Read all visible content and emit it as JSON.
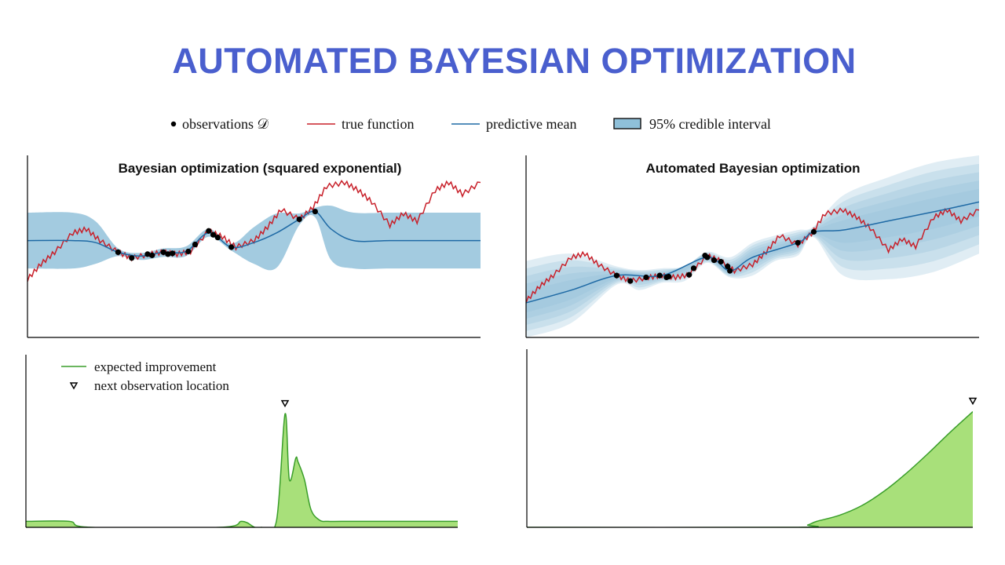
{
  "title": "AUTOMATED BAYESIAN OPTIMIZATION",
  "colors": {
    "title": "#4a5fce",
    "true_function": "#c8202a",
    "predictive_mean": "#1f6aa5",
    "credible_interval": "#8fc0d9",
    "expected_improvement_line": "#3a9e2a",
    "expected_improvement_fill": "#a8e07a",
    "observation": "#000000"
  },
  "legend_top": {
    "observations": "observations 𝒟",
    "true_function": "true function",
    "predictive_mean": "predictive mean",
    "credible_interval": "95% credible interval"
  },
  "legend_bottom": {
    "expected_improvement": "expected improvement",
    "next_observation": "next observation location"
  },
  "chart_data": [
    {
      "type": "line",
      "panel": "top-left",
      "title": "Bayesian optimization (squared exponential)",
      "xlim": [
        0,
        1
      ],
      "ylim": [
        -2.5,
        2.2
      ],
      "observations": {
        "x": [
          0.2,
          0.23,
          0.265,
          0.275,
          0.3,
          0.31,
          0.32,
          0.355,
          0.37,
          0.4,
          0.41,
          0.42,
          0.45,
          0.6,
          0.635
        ],
        "y": [
          -0.3,
          -0.45,
          -0.35,
          -0.38,
          -0.3,
          -0.35,
          -0.33,
          -0.28,
          -0.1,
          0.25,
          0.15,
          0.08,
          -0.17,
          0.55,
          0.75
        ]
      },
      "true_function": {
        "x": [
          0.0,
          0.03,
          0.06,
          0.1,
          0.13,
          0.16,
          0.2,
          0.23,
          0.27,
          0.3,
          0.33,
          0.36,
          0.4,
          0.43,
          0.46,
          0.5,
          0.53,
          0.56,
          0.6,
          0.63,
          0.66,
          0.7,
          0.73,
          0.76,
          0.8,
          0.83,
          0.86,
          0.9,
          0.93,
          0.96,
          1.0
        ],
        "y": [
          -1.0,
          -0.6,
          -0.3,
          0.2,
          0.3,
          0.0,
          -0.3,
          -0.45,
          -0.35,
          -0.3,
          -0.35,
          -0.28,
          0.25,
          0.1,
          -0.17,
          0.0,
          0.35,
          0.8,
          0.55,
          0.85,
          1.4,
          1.5,
          1.3,
          1.0,
          0.4,
          0.7,
          0.5,
          1.3,
          1.5,
          1.2,
          1.5
        ]
      },
      "predictive_mean": {
        "x": [
          0.0,
          0.1,
          0.15,
          0.2,
          0.25,
          0.3,
          0.35,
          0.4,
          0.45,
          0.5,
          0.55,
          0.6,
          0.635,
          0.67,
          0.72,
          0.8,
          0.9,
          1.0
        ],
        "y": [
          0.0,
          0.0,
          -0.05,
          -0.3,
          -0.4,
          -0.3,
          -0.28,
          0.2,
          -0.17,
          -0.05,
          0.2,
          0.55,
          0.75,
          0.3,
          0.0,
          0.0,
          0.0,
          0.0
        ]
      },
      "ci_upper": {
        "x": [
          0.0,
          0.1,
          0.15,
          0.2,
          0.25,
          0.3,
          0.35,
          0.4,
          0.45,
          0.5,
          0.55,
          0.6,
          0.635,
          0.67,
          0.72,
          0.8,
          0.9,
          1.0
        ],
        "y": [
          0.72,
          0.72,
          0.5,
          -0.2,
          -0.32,
          -0.2,
          -0.15,
          0.3,
          -0.08,
          0.35,
          0.7,
          0.7,
          0.85,
          0.9,
          0.72,
          0.72,
          0.72,
          0.72
        ]
      },
      "ci_lower": {
        "x": [
          0.0,
          0.1,
          0.15,
          0.2,
          0.25,
          0.3,
          0.35,
          0.4,
          0.45,
          0.5,
          0.55,
          0.6,
          0.635,
          0.67,
          0.72,
          0.8,
          0.9,
          1.0
        ],
        "y": [
          -0.72,
          -0.72,
          -0.6,
          -0.4,
          -0.5,
          -0.42,
          -0.4,
          0.1,
          -0.26,
          -0.6,
          -0.7,
          0.4,
          0.6,
          -0.5,
          -0.72,
          -0.72,
          -0.72,
          -0.72
        ]
      }
    },
    {
      "type": "line",
      "panel": "top-right",
      "title": "Automated Bayesian optimization",
      "xlim": [
        0,
        1
      ],
      "ylim": [
        -2.0,
        3.0
      ],
      "observations": {
        "x": [
          0.2,
          0.23,
          0.265,
          0.295,
          0.31,
          0.315,
          0.36,
          0.37,
          0.395,
          0.4,
          0.415,
          0.43,
          0.445,
          0.45,
          0.6,
          0.635
        ],
        "y": [
          -0.3,
          -0.45,
          -0.35,
          -0.3,
          -0.35,
          -0.33,
          -0.28,
          -0.1,
          0.25,
          0.2,
          0.12,
          0.08,
          -0.05,
          -0.17,
          0.6,
          0.9
        ]
      },
      "true_function": {
        "x": [
          0.0,
          0.03,
          0.06,
          0.1,
          0.13,
          0.16,
          0.2,
          0.23,
          0.27,
          0.3,
          0.33,
          0.36,
          0.4,
          0.43,
          0.46,
          0.5,
          0.53,
          0.56,
          0.6,
          0.63,
          0.66,
          0.7,
          0.73,
          0.76,
          0.8,
          0.83,
          0.86,
          0.9,
          0.93,
          0.96,
          1.0
        ],
        "y": [
          -1.0,
          -0.6,
          -0.3,
          0.2,
          0.3,
          0.0,
          -0.3,
          -0.45,
          -0.35,
          -0.3,
          -0.35,
          -0.28,
          0.25,
          0.1,
          -0.17,
          0.0,
          0.35,
          0.8,
          0.55,
          0.85,
          1.4,
          1.5,
          1.3,
          1.0,
          0.4,
          0.7,
          0.5,
          1.3,
          1.5,
          1.2,
          1.5
        ]
      },
      "predictive_mean": {
        "x": [
          0.0,
          0.1,
          0.2,
          0.3,
          0.4,
          0.45,
          0.5,
          0.6,
          0.635,
          0.7,
          0.8,
          0.9,
          1.0
        ],
        "y": [
          -1.05,
          -0.7,
          -0.3,
          -0.3,
          0.2,
          -0.17,
          0.2,
          0.6,
          0.9,
          0.95,
          1.2,
          1.45,
          1.72
        ]
      },
      "ci_upper": {
        "x": [
          0.0,
          0.1,
          0.2,
          0.25,
          0.3,
          0.35,
          0.4,
          0.45,
          0.5,
          0.55,
          0.6,
          0.635,
          0.7,
          0.8,
          0.9,
          1.0
        ],
        "y": [
          0.1,
          0.3,
          -0.05,
          -0.15,
          -0.1,
          -0.05,
          0.35,
          0.2,
          0.6,
          0.8,
          0.95,
          1.05,
          1.9,
          2.4,
          2.8,
          3.0
        ]
      },
      "ci_lower": {
        "x": [
          0.0,
          0.1,
          0.2,
          0.25,
          0.3,
          0.35,
          0.4,
          0.45,
          0.5,
          0.55,
          0.6,
          0.635,
          0.7,
          0.8,
          0.9,
          1.0
        ],
        "y": [
          -2.0,
          -1.6,
          -0.55,
          -0.7,
          -0.5,
          -0.45,
          0.05,
          -0.35,
          -0.3,
          0.1,
          0.25,
          0.75,
          -0.3,
          -0.4,
          -0.2,
          0.3
        ]
      }
    },
    {
      "type": "area",
      "panel": "bottom-left",
      "series_label": "expected improvement",
      "xlim": [
        0,
        1
      ],
      "ylim": [
        0,
        1
      ],
      "x": [
        0.0,
        0.1,
        0.15,
        0.45,
        0.5,
        0.53,
        0.545,
        0.58,
        0.6,
        0.61,
        0.625,
        0.63,
        0.645,
        0.66,
        0.68,
        0.7,
        0.73,
        0.8,
        0.9,
        1.0
      ],
      "y": [
        0.05,
        0.05,
        0.0,
        0.0,
        0.05,
        0.0,
        0.0,
        0.05,
        0.95,
        0.4,
        0.58,
        0.55,
        0.4,
        0.15,
        0.06,
        0.05,
        0.05,
        0.05,
        0.05,
        0.05
      ],
      "next_observation_x": 0.6
    },
    {
      "type": "area",
      "panel": "bottom-right",
      "series_label": "expected improvement",
      "xlim": [
        0,
        1
      ],
      "ylim": [
        0,
        1
      ],
      "x": [
        0.0,
        0.6,
        0.63,
        0.65,
        0.7,
        0.75,
        0.8,
        0.85,
        0.9,
        0.95,
        1.0
      ],
      "y": [
        0.0,
        0.0,
        0.02,
        0.05,
        0.1,
        0.18,
        0.3,
        0.45,
        0.62,
        0.8,
        0.97
      ],
      "next_observation_x": 1.0
    }
  ]
}
